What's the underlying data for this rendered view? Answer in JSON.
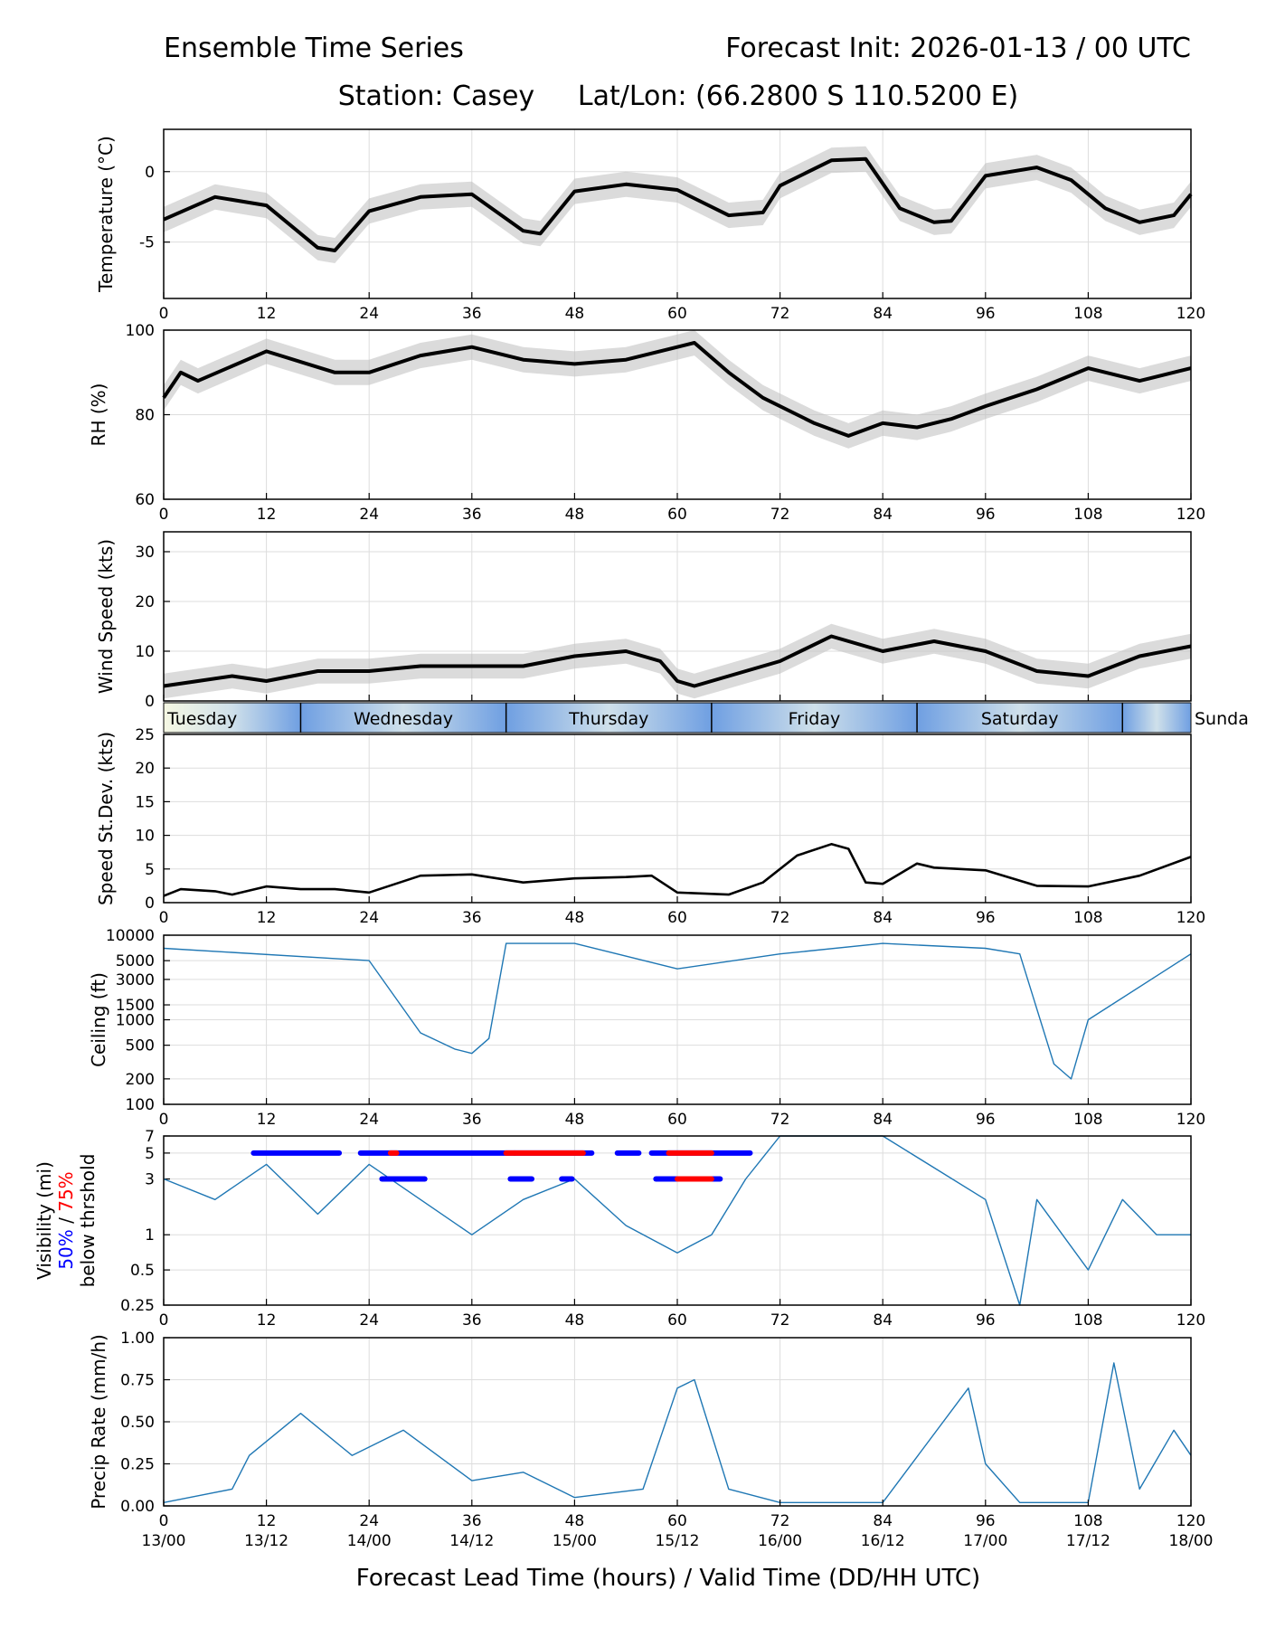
{
  "header": {
    "left_title": "Ensemble Time Series",
    "right_title": "Forecast Init: 2026-01-13 / 00 UTC",
    "station_line": "Station: Casey     Lat/Lon: (66.2800 S 110.5200 E)"
  },
  "day_bar": {
    "labels": [
      "Tuesday",
      "Wednesday",
      "Thursday",
      "Friday",
      "Saturday",
      "Sunda"
    ]
  },
  "x_axis": {
    "ticks": [
      "0",
      "12",
      "24",
      "36",
      "48",
      "60",
      "72",
      "84",
      "96",
      "108",
      "120"
    ],
    "valid_time_labels": [
      "13/00",
      "13/12",
      "14/00",
      "14/12",
      "15/00",
      "15/12",
      "16/00",
      "16/12",
      "17/00",
      "17/12",
      "18/00"
    ],
    "xlabel": "Forecast Lead Time (hours) / Valid Time (DD/HH UTC)"
  },
  "colors": {
    "mean": "#000000",
    "spread": "#bdbdbd",
    "vis50": "#0000ff",
    "vis75": "#ff0000"
  },
  "chart_data": [
    {
      "type": "line",
      "id": "temp",
      "ylabel": "Temperature (°C)",
      "ylim": [
        -9,
        3
      ],
      "yticks": [
        "0",
        "-5"
      ],
      "ytick_values": [
        0,
        -5
      ],
      "series": [
        {
          "name": "ensemble mean",
          "x": [
            0,
            6,
            12,
            18,
            20,
            24,
            30,
            36,
            42,
            44,
            48,
            54,
            60,
            66,
            70,
            72,
            78,
            82,
            86,
            90,
            92,
            96,
            102,
            106,
            110,
            114,
            118,
            120
          ],
          "values": [
            -3.4,
            -1.8,
            -2.4,
            -5.4,
            -5.6,
            -2.8,
            -1.8,
            -1.6,
            -4.2,
            -4.4,
            -1.4,
            -0.9,
            -1.3,
            -3.1,
            -2.9,
            -1.0,
            0.8,
            0.9,
            -2.6,
            -3.6,
            -3.5,
            -0.3,
            0.3,
            -0.6,
            -2.6,
            -3.6,
            -3.1,
            -1.6
          ]
        }
      ]
    },
    {
      "type": "line",
      "id": "rh",
      "ylabel": "RH (%)",
      "ylim": [
        60,
        100
      ],
      "yticks": [
        "100",
        "80",
        "60"
      ],
      "ytick_values": [
        100,
        80,
        60
      ],
      "series": [
        {
          "name": "ensemble mean",
          "x": [
            0,
            2,
            4,
            12,
            20,
            24,
            30,
            36,
            42,
            48,
            54,
            60,
            62,
            66,
            70,
            76,
            80,
            84,
            88,
            92,
            96,
            102,
            108,
            114,
            120
          ],
          "values": [
            84,
            90,
            88,
            95,
            90,
            90,
            94,
            96,
            93,
            92,
            93,
            96,
            97,
            90,
            84,
            78,
            75,
            78,
            77,
            79,
            82,
            86,
            91,
            88,
            91
          ]
        }
      ]
    },
    {
      "type": "line",
      "id": "wind",
      "ylabel": "Wind Speed (kts)",
      "ylim": [
        0,
        34
      ],
      "yticks": [
        "30",
        "20",
        "10",
        "0"
      ],
      "ytick_values": [
        30,
        20,
        10,
        0
      ],
      "series": [
        {
          "name": "ensemble mean",
          "x": [
            0,
            4,
            8,
            12,
            18,
            24,
            30,
            36,
            42,
            48,
            54,
            58,
            60,
            62,
            66,
            72,
            78,
            84,
            90,
            96,
            102,
            108,
            114,
            120
          ],
          "values": [
            3,
            4,
            5,
            4,
            6,
            6,
            7,
            7,
            7,
            9,
            10,
            8,
            4,
            3,
            5,
            8,
            13,
            10,
            12,
            10,
            6,
            5,
            9,
            11
          ]
        }
      ]
    },
    {
      "type": "line",
      "id": "sd",
      "ylabel": "Speed St.Dev. (kts)",
      "ylim": [
        0,
        25
      ],
      "yticks": [
        "25",
        "20",
        "15",
        "10",
        "5",
        "0"
      ],
      "ytick_values": [
        25,
        20,
        15,
        10,
        5,
        0
      ],
      "series": [
        {
          "name": "speed standard deviation",
          "x": [
            0,
            2,
            6,
            8,
            12,
            16,
            20,
            24,
            30,
            36,
            42,
            48,
            54,
            57,
            60,
            66,
            70,
            74,
            78,
            80,
            82,
            84,
            88,
            90,
            96,
            102,
            108,
            114,
            120
          ],
          "values": [
            1,
            2,
            1.7,
            1.2,
            2.4,
            2,
            2,
            1.5,
            4,
            4.2,
            3,
            3.6,
            3.8,
            4,
            1.5,
            1.2,
            3,
            7,
            8.7,
            8,
            3,
            2.8,
            5.8,
            5.2,
            4.8,
            2.5,
            2.4,
            4,
            6.8
          ]
        }
      ]
    },
    {
      "type": "line",
      "id": "ceil",
      "ylabel": "Ceiling (ft)",
      "yscale": "log",
      "ylim": [
        100,
        10000
      ],
      "yticks": [
        "10000",
        "5000",
        "3000",
        "1500",
        "1000",
        "500",
        "200",
        "100"
      ],
      "ytick_values": [
        10000,
        5000,
        3000,
        1500,
        1000,
        500,
        200,
        100
      ],
      "series": [
        {
          "name": "representative member",
          "x": [
            0,
            24,
            30,
            34,
            36,
            38,
            40,
            44,
            48,
            60,
            72,
            84,
            96,
            100,
            104,
            106,
            108,
            120
          ],
          "values": [
            7000,
            5000,
            700,
            450,
            400,
            600,
            8000,
            8000,
            8000,
            4000,
            6000,
            8000,
            7000,
            6000,
            300,
            200,
            1000,
            6000
          ]
        }
      ]
    },
    {
      "type": "line",
      "id": "vis",
      "ylabel": "Visibility (mi)",
      "yscale": "log",
      "ylim": [
        0.25,
        7
      ],
      "yticks": [
        "7",
        "5",
        "3",
        "1",
        "0.5",
        "0.25"
      ],
      "ytick_values": [
        7,
        5,
        3,
        1,
        0.5,
        0.25
      ],
      "threshold_legend": {
        "p50": "50%",
        "p75": "75%",
        "suffix": "below thrshold"
      },
      "threshold_bars": {
        "p50_at_5mi": [
          [
            10.5,
            20.5
          ],
          [
            23,
            41
          ],
          [
            41,
            50
          ],
          [
            53,
            55.5
          ],
          [
            57,
            68.5
          ]
        ],
        "p75_at_5mi": [
          [
            26.5,
            27.2
          ],
          [
            40,
            49
          ],
          [
            59,
            64
          ]
        ],
        "p50_at_3mi": [
          [
            25.5,
            30.5
          ],
          [
            40.5,
            43
          ],
          [
            46.5,
            47.7
          ],
          [
            57.5,
            65
          ]
        ],
        "p75_at_3mi": [
          [
            60,
            64
          ]
        ]
      },
      "series": [
        {
          "name": "representative member",
          "x": [
            0,
            6,
            12,
            18,
            24,
            30,
            36,
            42,
            48,
            54,
            60,
            64,
            68,
            72,
            84,
            96,
            100,
            102,
            108,
            112,
            116,
            120
          ],
          "values": [
            3,
            2,
            4,
            1.5,
            4,
            2,
            1,
            2,
            3,
            1.2,
            0.7,
            1,
            3,
            7,
            7,
            2,
            0.25,
            2,
            0.5,
            2,
            1,
            1
          ]
        }
      ]
    },
    {
      "type": "line",
      "id": "precip",
      "ylabel": "Precip Rate (mm/h)",
      "ylim": [
        0,
        1
      ],
      "yticks": [
        "1.00",
        "0.75",
        "0.50",
        "0.25",
        "0.00"
      ],
      "ytick_values": [
        1,
        0.75,
        0.5,
        0.25,
        0
      ],
      "series": [
        {
          "name": "representative member",
          "x": [
            0,
            8,
            10,
            16,
            22,
            28,
            36,
            42,
            48,
            56,
            60,
            62,
            66,
            72,
            84,
            94,
            96,
            100,
            108,
            111,
            114,
            118,
            120
          ],
          "values": [
            0.02,
            0.1,
            0.3,
            0.55,
            0.3,
            0.45,
            0.15,
            0.2,
            0.05,
            0.1,
            0.7,
            0.75,
            0.1,
            0.02,
            0.02,
            0.7,
            0.25,
            0.02,
            0.02,
            0.85,
            0.1,
            0.45,
            0.3
          ]
        }
      ]
    }
  ]
}
